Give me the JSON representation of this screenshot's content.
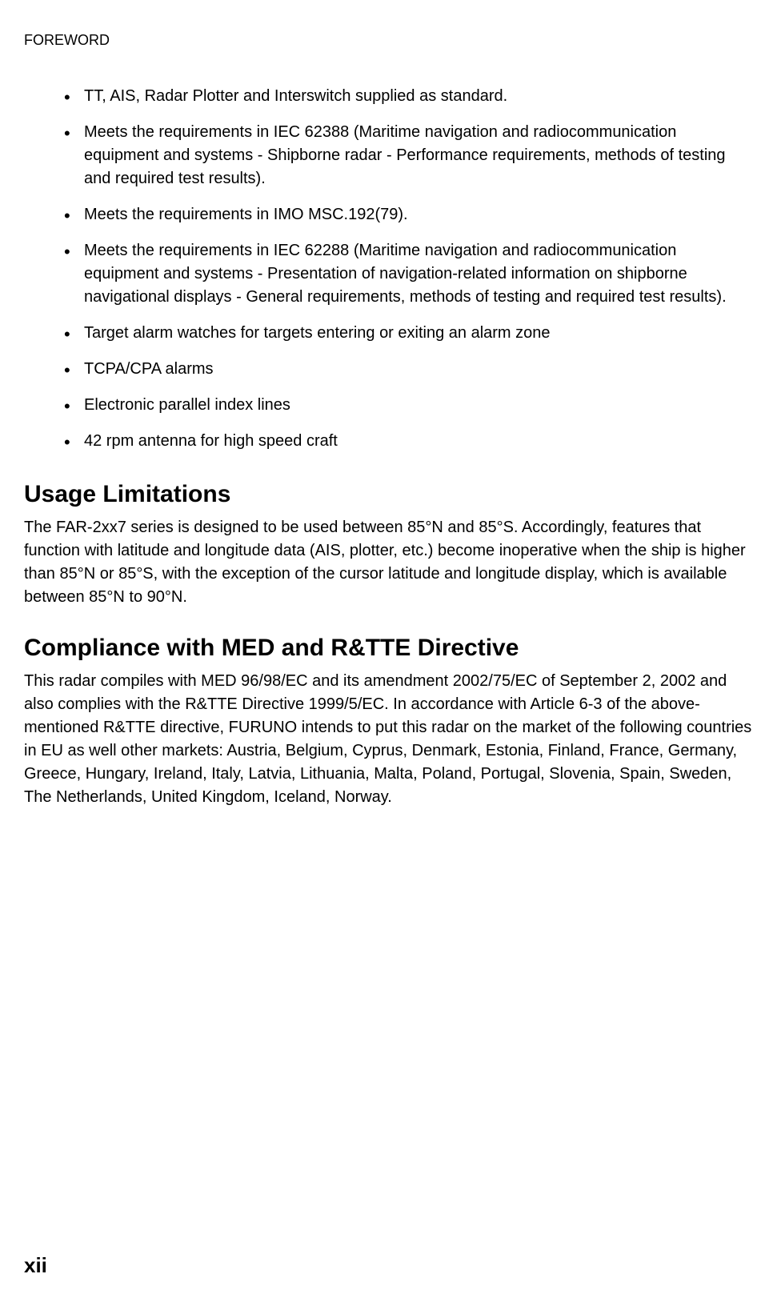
{
  "header": "FOREWORD",
  "bullets": [
    "TT, AIS, Radar Plotter and Interswitch supplied as standard.",
    "Meets the requirements in IEC 62388 (Maritime navigation and radiocommunication equipment and systems - Shipborne radar - Performance requirements, methods of testing and required test results).",
    "Meets the requirements in IMO MSC.192(79).",
    "Meets the requirements in IEC 62288 (Maritime navigation and radiocommunication equipment and systems - Presentation of navigation-related information on shipborne navigational displays - General requirements, methods of testing and required test results).",
    "Target alarm watches for targets entering or exiting an alarm zone",
    "TCPA/CPA alarms",
    "Electronic parallel index lines",
    "42 rpm antenna for high speed craft"
  ],
  "section1": {
    "heading": "Usage Limitations",
    "body": "The FAR-2xx7 series is designed to be used between 85°N and 85°S. Accordingly, features that function with latitude and longitude data (AIS, plotter, etc.) become inoperative when the ship is higher than 85°N or 85°S, with the exception of the cursor latitude and longitude display, which is available between 85°N to 90°N."
  },
  "section2": {
    "heading": "Compliance with MED and R&TTE Directive",
    "body": "This radar compiles with MED 96/98/EC and its amendment 2002/75/EC of September 2, 2002 and also complies with the R&TTE Directive 1999/5/EC. In accordance with Article 6-3 of the above-mentioned R&TTE directive, FURUNO intends to put this radar on the market of the following countries in EU as well other markets: Austria, Belgium, Cyprus, Denmark, Estonia, Finland, France, Germany, Greece, Hungary, Ireland, Italy, Latvia, Lithuania, Malta, Poland, Portugal, Slovenia, Spain, Sweden, The Netherlands, United Kingdom, Iceland, Norway."
  },
  "pageNumber": "xii"
}
